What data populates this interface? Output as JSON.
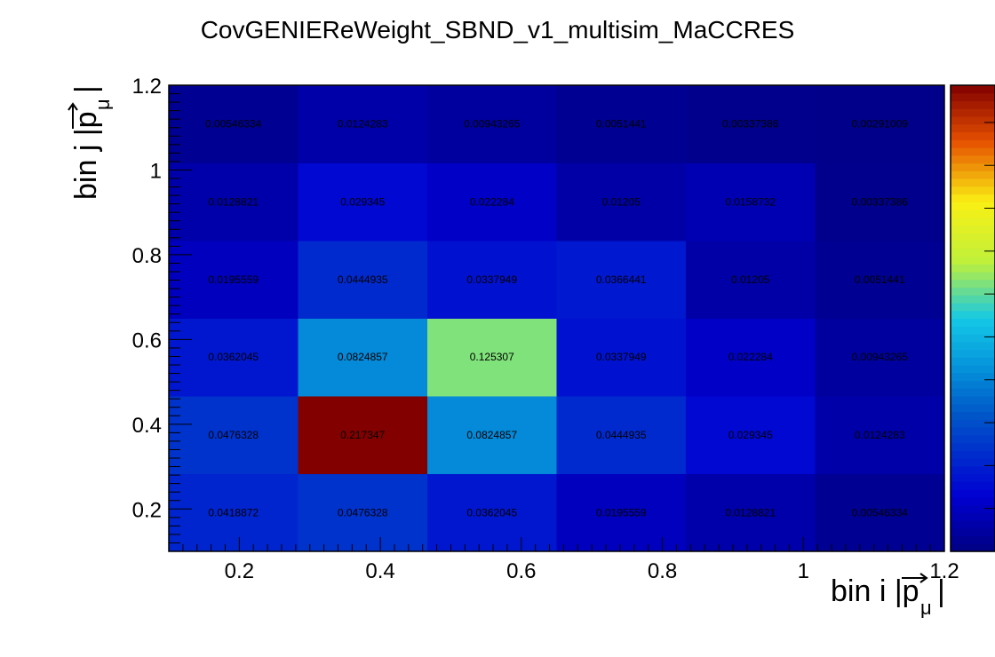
{
  "chart_data": {
    "type": "heatmap",
    "title": "CovGENIEReWeight_SBND_v1_multisim_MaCCRES",
    "xlabel": "bin i |p⃗_μ|",
    "ylabel": "bin j |p⃗_μ|",
    "xlim": [
      0.1,
      1.2
    ],
    "ylim": [
      0.1,
      1.2
    ],
    "x_edges": [
      0.1,
      0.2833,
      0.4667,
      0.65,
      0.8333,
      1.0167,
      1.2
    ],
    "y_edges": [
      0.1,
      0.2833,
      0.4667,
      0.65,
      0.8333,
      1.0167,
      1.2
    ],
    "x_ticks": [
      0.2,
      0.4,
      0.6,
      0.8,
      1,
      1.2
    ],
    "y_ticks": [
      0.2,
      0.4,
      0.6,
      0.8,
      1,
      1.2
    ],
    "x_tick_labels": [
      "0.2",
      "0.4",
      "0.6",
      "0.8",
      "1",
      "1.2"
    ],
    "y_tick_labels": [
      "0.2",
      "0.4",
      "0.6",
      "0.8",
      "1",
      "1.2"
    ],
    "z_range": [
      0,
      0.217347
    ],
    "colormap": "jet",
    "values": [
      [
        0.0418872,
        0.0476328,
        0.0362045,
        0.0195559,
        0.0128821,
        0.00546334
      ],
      [
        0.0476328,
        0.217347,
        0.0824857,
        0.0444935,
        0.029345,
        0.0124283
      ],
      [
        0.0362045,
        0.0824857,
        0.125307,
        0.0337949,
        0.022284,
        0.00943265
      ],
      [
        0.0195559,
        0.0444935,
        0.0337949,
        0.0366441,
        0.01205,
        0.0051441
      ],
      [
        0.0128821,
        0.029345,
        0.022284,
        0.01205,
        0.0158732,
        0.00337386
      ],
      [
        0.00546334,
        0.0124283,
        0.00943265,
        0.0051441,
        0.00337386,
        0.00291009
      ]
    ],
    "cell_labels": [
      [
        "0.0418872",
        "0.0476328",
        "0.0362045",
        "0.0195559",
        "0.0128821",
        "0.00546334"
      ],
      [
        "0.0476328",
        "0.217347",
        "0.0824857",
        "0.0444935",
        "0.029345",
        "0.0124283"
      ],
      [
        "0.0362045",
        "0.0824857",
        "0.125307",
        "0.0337949",
        "0.022284",
        "0.00943265"
      ],
      [
        "0.0195559",
        "0.0444935",
        "0.0337949",
        "0.0366441",
        "0.01205",
        "0.0051441"
      ],
      [
        "0.0128821",
        "0.029345",
        "0.022284",
        "0.01205",
        "0.0158732",
        "0.00337386"
      ],
      [
        "0.00546334",
        "0.0124283",
        "0.00943265",
        "0.0051441",
        "0.00337386",
        "0.00291009"
      ]
    ],
    "grid": false,
    "legend": "none",
    "colorbar": "right"
  }
}
